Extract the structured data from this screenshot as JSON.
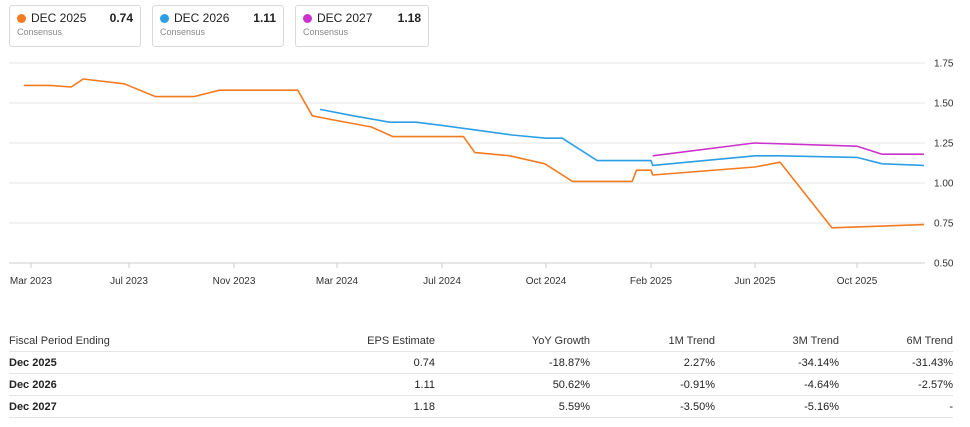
{
  "legend": [
    {
      "label": "DEC 2025",
      "value": "0.74",
      "sub": "Consensus",
      "color": "#f47b20"
    },
    {
      "label": "DEC 2026",
      "value": "1.11",
      "sub": "Consensus",
      "color": "#2b9fe6"
    },
    {
      "label": "DEC 2027",
      "value": "1.18",
      "sub": "Consensus",
      "color": "#cc33cc"
    }
  ],
  "chart_data": {
    "type": "line",
    "ylim": [
      0.5,
      1.75
    ],
    "yticks": [
      "1.75",
      "1.50",
      "1.25",
      "1.00",
      "0.75",
      "0.50"
    ],
    "x_tick_labels": [
      "Mar 2023",
      "Jul 2023",
      "Nov 2023",
      "Mar 2024",
      "Jul 2024",
      "Oct 2024",
      "Feb 2025",
      "Jun 2025",
      "Oct 2025"
    ],
    "x_tick_dates": [
      "2023-03-01",
      "2023-07-01",
      "2023-11-01",
      "2024-03-01",
      "2024-07-01",
      "2024-10-01",
      "2025-02-01",
      "2025-06-01",
      "2025-10-01"
    ],
    "grid": true,
    "series": [
      {
        "name": "DEC 2025",
        "color": "#f47b20",
        "points": [
          [
            "2023-02-20",
            1.61
          ],
          [
            "2023-03-25",
            1.61
          ],
          [
            "2023-04-20",
            1.6
          ],
          [
            "2023-05-05",
            1.65
          ],
          [
            "2023-06-25",
            1.62
          ],
          [
            "2023-08-01",
            1.54
          ],
          [
            "2023-09-15",
            1.54
          ],
          [
            "2023-10-15",
            1.58
          ],
          [
            "2023-12-01",
            1.58
          ],
          [
            "2024-01-15",
            1.58
          ],
          [
            "2024-02-01",
            1.42
          ],
          [
            "2024-02-20",
            1.4
          ],
          [
            "2024-04-10",
            1.35
          ],
          [
            "2024-05-05",
            1.29
          ],
          [
            "2024-07-01",
            1.29
          ],
          [
            "2024-07-20",
            1.29
          ],
          [
            "2024-07-30",
            1.19
          ],
          [
            "2024-08-30",
            1.17
          ],
          [
            "2024-09-30",
            1.12
          ],
          [
            "2024-11-01",
            1.01
          ],
          [
            "2025-01-10",
            1.01
          ],
          [
            "2025-01-15",
            1.08
          ],
          [
            "2025-02-01",
            1.08
          ],
          [
            "2025-02-03",
            1.05
          ],
          [
            "2025-06-01",
            1.1
          ],
          [
            "2025-07-01",
            1.13
          ],
          [
            "2025-09-01",
            0.72
          ],
          [
            "2025-12-20",
            0.74
          ]
        ]
      },
      {
        "name": "DEC 2026",
        "color": "#2b9fe6",
        "points": [
          [
            "2024-02-10",
            1.46
          ],
          [
            "2024-03-20",
            1.42
          ],
          [
            "2024-05-01",
            1.38
          ],
          [
            "2024-06-01",
            1.38
          ],
          [
            "2024-07-01",
            1.36
          ],
          [
            "2024-08-01",
            1.33
          ],
          [
            "2024-09-01",
            1.3
          ],
          [
            "2024-10-01",
            1.28
          ],
          [
            "2024-10-20",
            1.28
          ],
          [
            "2024-11-30",
            1.14
          ],
          [
            "2025-02-01",
            1.14
          ],
          [
            "2025-02-03",
            1.11
          ],
          [
            "2025-06-01",
            1.17
          ],
          [
            "2025-06-30",
            1.17
          ],
          [
            "2025-10-01",
            1.16
          ],
          [
            "2025-10-31",
            1.12
          ],
          [
            "2025-12-20",
            1.11
          ]
        ]
      },
      {
        "name": "DEC 2027",
        "color": "#cc33cc",
        "points": [
          [
            "2025-02-03",
            1.17
          ],
          [
            "2025-05-31",
            1.25
          ],
          [
            "2025-10-01",
            1.23
          ],
          [
            "2025-10-31",
            1.18
          ],
          [
            "2025-12-20",
            1.18
          ]
        ]
      }
    ]
  },
  "table": {
    "headers": [
      "Fiscal Period Ending",
      "EPS Estimate",
      "YoY Growth",
      "1M Trend",
      "3M Trend",
      "6M Trend"
    ],
    "rows": [
      {
        "cells": [
          "Dec 2025",
          "0.74",
          "-18.87%",
          "2.27%",
          "-34.14%",
          "-31.43%"
        ],
        "signs": [
          "",
          "",
          "",
          "pos",
          "neg",
          "neg"
        ]
      },
      {
        "cells": [
          "Dec 2026",
          "1.11",
          "50.62%",
          "-0.91%",
          "-4.64%",
          "-2.57%"
        ],
        "signs": [
          "",
          "",
          "",
          "neg",
          "neg",
          "neg"
        ]
      },
      {
        "cells": [
          "Dec 2027",
          "1.18",
          "5.59%",
          "-3.50%",
          "-5.16%",
          "-"
        ],
        "signs": [
          "",
          "",
          "",
          "neg",
          "neg",
          ""
        ]
      }
    ]
  }
}
